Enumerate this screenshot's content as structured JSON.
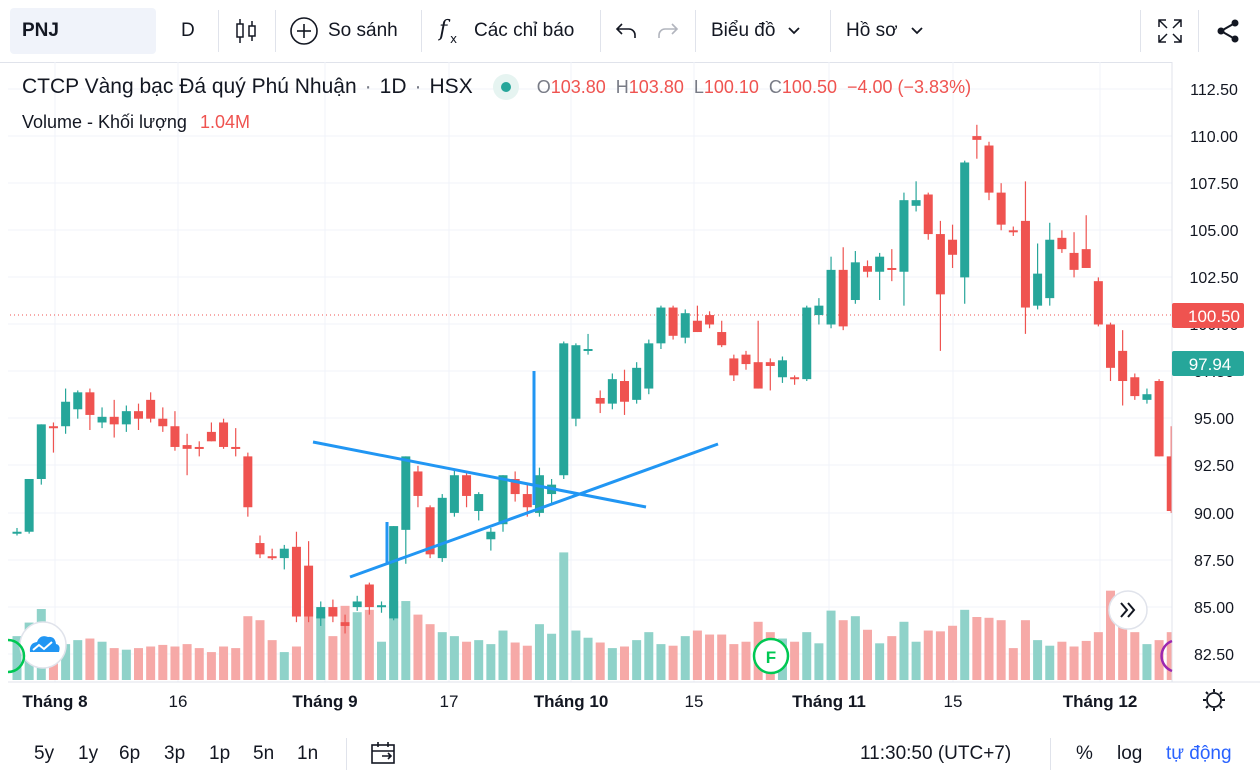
{
  "toolbar": {
    "symbol": "PNJ",
    "interval": "D",
    "compare": "So sánh",
    "indicators": "Các chỉ báo",
    "chart_menu": "Biểu đồ",
    "profile_menu": "Hồ sơ"
  },
  "legend": {
    "name": "CTCP Vàng bạc Đá quý Phú Nhuận",
    "interval": "1D",
    "exchange": "HSX",
    "o_label": "O",
    "o_value": "103.80",
    "h_label": "H",
    "h_value": "103.80",
    "l_label": "L",
    "l_value": "100.10",
    "c_label": "C",
    "c_value": "100.50",
    "change": "−4.00 (−3.83%)",
    "volume_label": "Volume - Khối lượng",
    "volume_value": "1.04M"
  },
  "price_badges": {
    "last": "100.50",
    "secondary": "97.94"
  },
  "markers": {
    "event": "F"
  },
  "bottom": {
    "ranges": [
      "5y",
      "1y",
      "6p",
      "3p",
      "1p",
      "5n",
      "1n"
    ],
    "time": "11:30:50 (UTC+7)",
    "percent": "%",
    "log": "log",
    "auto": "tự động"
  },
  "colors": {
    "up": "#26a69a",
    "down": "#ef5350",
    "up_vol": "#8fd2c9",
    "down_vol": "#f6a9a7",
    "drawing": "#2196f3",
    "accent": "#2962ff"
  },
  "chart_data": {
    "type": "candlestick",
    "y_ticks": [
      "112.50",
      "110.00",
      "107.50",
      "105.00",
      "102.50",
      "100.00",
      "97.50",
      "95.00",
      "92.50",
      "90.00",
      "87.50",
      "85.00",
      "82.50"
    ],
    "x_ticks": [
      "Tháng 8",
      "16",
      "Tháng 9",
      "17",
      "Tháng 10",
      "15",
      "Tháng 11",
      "15",
      "Tháng 12"
    ],
    "ylim": [
      81.5,
      113.5
    ],
    "candles": [
      {
        "o": 89.0,
        "h": 89.2,
        "l": 88.8,
        "c": 89.0,
        "v": 0.55
      },
      {
        "o": 89.0,
        "h": 91.8,
        "l": 88.9,
        "c": 91.8,
        "v": 0.72
      },
      {
        "o": 91.8,
        "h": 94.7,
        "l": 91.5,
        "c": 94.7,
        "v": 0.89
      },
      {
        "o": 94.6,
        "h": 94.8,
        "l": 93.2,
        "c": 94.5,
        "v": 0.62
      },
      {
        "o": 94.6,
        "h": 96.6,
        "l": 94.2,
        "c": 95.9,
        "v": 0.45
      },
      {
        "o": 95.5,
        "h": 96.5,
        "l": 95.0,
        "c": 96.4,
        "v": 0.5
      },
      {
        "o": 96.4,
        "h": 96.6,
        "l": 94.4,
        "c": 95.2,
        "v": 0.52
      },
      {
        "o": 94.8,
        "h": 95.6,
        "l": 94.5,
        "c": 95.1,
        "v": 0.48
      },
      {
        "o": 95.1,
        "h": 96.0,
        "l": 94.0,
        "c": 94.7,
        "v": 0.4
      },
      {
        "o": 94.7,
        "h": 95.7,
        "l": 94.3,
        "c": 95.4,
        "v": 0.38
      },
      {
        "o": 95.4,
        "h": 95.8,
        "l": 94.4,
        "c": 95.0,
        "v": 0.4
      },
      {
        "o": 96.0,
        "h": 96.4,
        "l": 94.8,
        "c": 95.0,
        "v": 0.42
      },
      {
        "o": 95.0,
        "h": 95.6,
        "l": 94.3,
        "c": 94.6,
        "v": 0.44
      },
      {
        "o": 94.6,
        "h": 95.4,
        "l": 93.3,
        "c": 93.5,
        "v": 0.42
      },
      {
        "o": 93.6,
        "h": 94.2,
        "l": 92.0,
        "c": 93.4,
        "v": 0.45
      },
      {
        "o": 93.5,
        "h": 93.8,
        "l": 93.0,
        "c": 93.4,
        "v": 0.4
      },
      {
        "o": 94.3,
        "h": 94.8,
        "l": 93.8,
        "c": 93.8,
        "v": 0.35
      },
      {
        "o": 94.8,
        "h": 95.0,
        "l": 93.4,
        "c": 93.5,
        "v": 0.42
      },
      {
        "o": 93.5,
        "h": 94.5,
        "l": 93.0,
        "c": 93.4,
        "v": 0.4
      },
      {
        "o": 93.0,
        "h": 93.2,
        "l": 89.8,
        "c": 90.3,
        "v": 0.8
      },
      {
        "o": 88.4,
        "h": 88.8,
        "l": 87.6,
        "c": 87.8,
        "v": 0.75
      },
      {
        "o": 87.7,
        "h": 88.1,
        "l": 87.5,
        "c": 87.6,
        "v": 0.5
      },
      {
        "o": 87.6,
        "h": 88.3,
        "l": 87.0,
        "c": 88.1,
        "v": 0.35
      },
      {
        "o": 88.2,
        "h": 89.0,
        "l": 84.2,
        "c": 84.5,
        "v": 0.42
      },
      {
        "o": 87.2,
        "h": 88.5,
        "l": 84.2,
        "c": 84.5,
        "v": 1.0
      },
      {
        "o": 84.4,
        "h": 85.3,
        "l": 84.0,
        "c": 85.0,
        "v": 0.8
      },
      {
        "o": 85.0,
        "h": 85.4,
        "l": 84.2,
        "c": 84.5,
        "v": 0.55
      },
      {
        "o": 84.2,
        "h": 84.6,
        "l": 83.6,
        "c": 84.0,
        "v": 0.93
      },
      {
        "o": 85.0,
        "h": 85.6,
        "l": 84.8,
        "c": 85.3,
        "v": 0.85
      },
      {
        "o": 86.2,
        "h": 86.3,
        "l": 84.6,
        "c": 85.0,
        "v": 0.88
      },
      {
        "o": 85.1,
        "h": 85.3,
        "l": 84.7,
        "c": 85.1,
        "v": 0.48
      },
      {
        "o": 84.4,
        "h": 89.3,
        "l": 84.3,
        "c": 89.3,
        "v": 0.99
      },
      {
        "o": 89.1,
        "h": 93.0,
        "l": 87.3,
        "c": 93.0,
        "v": 0.99
      },
      {
        "o": 92.2,
        "h": 92.5,
        "l": 90.3,
        "c": 90.9,
        "v": 0.82
      },
      {
        "o": 90.3,
        "h": 90.4,
        "l": 87.6,
        "c": 87.8,
        "v": 0.7
      },
      {
        "o": 87.6,
        "h": 91.0,
        "l": 87.4,
        "c": 90.8,
        "v": 0.6
      },
      {
        "o": 90.0,
        "h": 92.3,
        "l": 89.8,
        "c": 92.0,
        "v": 0.55
      },
      {
        "o": 92.0,
        "h": 92.2,
        "l": 90.3,
        "c": 90.9,
        "v": 0.48
      },
      {
        "o": 90.1,
        "h": 91.1,
        "l": 89.6,
        "c": 91.0,
        "v": 0.5
      },
      {
        "o": 88.6,
        "h": 89.2,
        "l": 88.0,
        "c": 89.0,
        "v": 0.45
      },
      {
        "o": 89.4,
        "h": 92.0,
        "l": 89.0,
        "c": 92.0,
        "v": 0.62
      },
      {
        "o": 91.8,
        "h": 92.2,
        "l": 90.6,
        "c": 91.0,
        "v": 0.47
      },
      {
        "o": 91.0,
        "h": 91.6,
        "l": 89.8,
        "c": 90.3,
        "v": 0.43
      },
      {
        "o": 90.0,
        "h": 92.4,
        "l": 89.8,
        "c": 92.0,
        "v": 0.7
      },
      {
        "o": 91.0,
        "h": 91.8,
        "l": 90.4,
        "c": 91.5,
        "v": 0.58
      },
      {
        "o": 92.0,
        "h": 99.1,
        "l": 91.8,
        "c": 99.0,
        "v": 1.6
      },
      {
        "o": 95.0,
        "h": 99.0,
        "l": 94.6,
        "c": 98.9,
        "v": 0.62
      },
      {
        "o": 98.6,
        "h": 99.5,
        "l": 98.4,
        "c": 98.7,
        "v": 0.53
      },
      {
        "o": 96.1,
        "h": 96.5,
        "l": 95.3,
        "c": 95.8,
        "v": 0.47
      },
      {
        "o": 95.8,
        "h": 97.4,
        "l": 95.5,
        "c": 97.1,
        "v": 0.4
      },
      {
        "o": 97.0,
        "h": 97.6,
        "l": 95.2,
        "c": 95.9,
        "v": 0.42
      },
      {
        "o": 96.0,
        "h": 98.0,
        "l": 95.8,
        "c": 97.7,
        "v": 0.5
      },
      {
        "o": 96.6,
        "h": 99.2,
        "l": 96.3,
        "c": 99.0,
        "v": 0.6
      },
      {
        "o": 99.0,
        "h": 101.0,
        "l": 98.7,
        "c": 100.9,
        "v": 0.45
      },
      {
        "o": 100.9,
        "h": 101.0,
        "l": 99.2,
        "c": 99.4,
        "v": 0.43
      },
      {
        "o": 99.3,
        "h": 100.8,
        "l": 99.0,
        "c": 100.6,
        "v": 0.55
      },
      {
        "o": 100.2,
        "h": 101.0,
        "l": 99.6,
        "c": 99.6,
        "v": 0.62
      },
      {
        "o": 100.5,
        "h": 100.7,
        "l": 99.8,
        "c": 100.0,
        "v": 0.57
      },
      {
        "o": 99.6,
        "h": 100.2,
        "l": 98.8,
        "c": 98.9,
        "v": 0.57
      },
      {
        "o": 98.2,
        "h": 98.4,
        "l": 97.0,
        "c": 97.3,
        "v": 0.45
      },
      {
        "o": 98.4,
        "h": 98.6,
        "l": 97.6,
        "c": 97.9,
        "v": 0.48
      },
      {
        "o": 98.0,
        "h": 100.2,
        "l": 96.6,
        "c": 96.6,
        "v": 0.73
      },
      {
        "o": 98.0,
        "h": 98.2,
        "l": 96.5,
        "c": 97.8,
        "v": 0.6
      },
      {
        "o": 97.2,
        "h": 98.3,
        "l": 96.9,
        "c": 98.1,
        "v": 0.52
      },
      {
        "o": 97.2,
        "h": 97.3,
        "l": 96.8,
        "c": 97.1,
        "v": 0.48
      },
      {
        "o": 97.1,
        "h": 101.0,
        "l": 97.0,
        "c": 100.9,
        "v": 0.6
      },
      {
        "o": 100.5,
        "h": 101.4,
        "l": 100.0,
        "c": 101.0,
        "v": 0.46
      },
      {
        "o": 100.0,
        "h": 103.6,
        "l": 99.8,
        "c": 102.9,
        "v": 0.87
      },
      {
        "o": 102.9,
        "h": 104.1,
        "l": 99.7,
        "c": 99.9,
        "v": 0.75
      },
      {
        "o": 101.3,
        "h": 103.9,
        "l": 101.1,
        "c": 103.3,
        "v": 0.8
      },
      {
        "o": 103.1,
        "h": 103.4,
        "l": 102.5,
        "c": 102.8,
        "v": 0.63
      },
      {
        "o": 102.8,
        "h": 103.8,
        "l": 101.3,
        "c": 103.6,
        "v": 0.46
      },
      {
        "o": 103.0,
        "h": 104.0,
        "l": 102.3,
        "c": 102.9,
        "v": 0.55
      },
      {
        "o": 102.8,
        "h": 107.0,
        "l": 101.0,
        "c": 106.6,
        "v": 0.73
      },
      {
        "o": 106.3,
        "h": 107.6,
        "l": 106.0,
        "c": 106.6,
        "v": 0.48
      },
      {
        "o": 106.9,
        "h": 107.0,
        "l": 104.5,
        "c": 104.8,
        "v": 0.62
      },
      {
        "o": 104.8,
        "h": 105.5,
        "l": 98.6,
        "c": 101.6,
        "v": 0.61
      },
      {
        "o": 104.5,
        "h": 105.3,
        "l": 103.0,
        "c": 103.7,
        "v": 0.68
      },
      {
        "o": 102.5,
        "h": 108.7,
        "l": 101.1,
        "c": 108.6,
        "v": 0.88
      },
      {
        "o": 110.0,
        "h": 110.6,
        "l": 108.8,
        "c": 109.8,
        "v": 0.79
      },
      {
        "o": 109.5,
        "h": 109.7,
        "l": 106.6,
        "c": 107.0,
        "v": 0.78
      },
      {
        "o": 107.0,
        "h": 107.5,
        "l": 105.0,
        "c": 105.3,
        "v": 0.75
      },
      {
        "o": 105.0,
        "h": 105.2,
        "l": 104.7,
        "c": 104.9,
        "v": 0.4
      },
      {
        "o": 105.5,
        "h": 107.6,
        "l": 99.5,
        "c": 100.9,
        "v": 0.75
      },
      {
        "o": 101.0,
        "h": 104.3,
        "l": 100.8,
        "c": 102.7,
        "v": 0.5
      },
      {
        "o": 101.4,
        "h": 105.4,
        "l": 101.0,
        "c": 104.5,
        "v": 0.43
      },
      {
        "o": 104.6,
        "h": 105.0,
        "l": 103.8,
        "c": 104.0,
        "v": 0.48
      },
      {
        "o": 103.8,
        "h": 104.9,
        "l": 102.5,
        "c": 102.9,
        "v": 0.42
      },
      {
        "o": 104.0,
        "h": 105.8,
        "l": 103.0,
        "c": 103.0,
        "v": 0.49
      },
      {
        "o": 102.3,
        "h": 102.5,
        "l": 99.9,
        "c": 100.0,
        "v": 0.6
      },
      {
        "o": 100.0,
        "h": 100.1,
        "l": 97.0,
        "c": 97.7,
        "v": 1.12
      },
      {
        "o": 98.6,
        "h": 99.7,
        "l": 95.7,
        "c": 97.0,
        "v": 0.84
      },
      {
        "o": 97.2,
        "h": 97.4,
        "l": 96.0,
        "c": 96.2,
        "v": 0.6
      },
      {
        "o": 96.0,
        "h": 96.6,
        "l": 95.8,
        "c": 96.3,
        "v": 0.45
      },
      {
        "o": 97.0,
        "h": 97.1,
        "l": 93.0,
        "c": 93.0,
        "v": 0.5
      },
      {
        "o": 93.0,
        "h": 94.6,
        "l": 90.0,
        "c": 90.1,
        "v": 0.6
      },
      {
        "o": 90.8,
        "h": 92.8,
        "l": 90.6,
        "c": 92.7,
        "v": 0.72
      },
      {
        "o": 93.8,
        "h": 97.6,
        "l": 93.5,
        "c": 95.2,
        "v": 0.74
      },
      {
        "o": 95.2,
        "h": 97.9,
        "l": 95.0,
        "c": 97.9,
        "v": 0.62
      }
    ]
  }
}
